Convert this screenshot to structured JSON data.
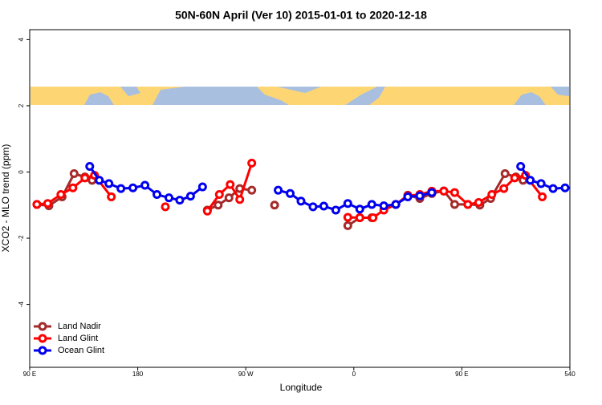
{
  "chart_data": {
    "type": "line",
    "title": "50N-60N April (Ver 10)   2015-01-01 to 2020-12-18",
    "x_label": "Longitude",
    "y_label": "XCO2 - MLO trend (ppm)",
    "xlim": [
      90,
      540
    ],
    "ylim": [
      -5.9,
      4.3
    ],
    "xticks": [
      {
        "value": 90,
        "label": "90 E"
      },
      180,
      {
        "value": 270,
        "label": "90 W"
      },
      {
        "value": 360,
        "label": "0"
      },
      {
        "value": 450,
        "label": "90 E"
      },
      540
    ],
    "yticks": [
      -4,
      -2,
      0,
      2,
      4
    ],
    "legend": "bottom-left",
    "series": [
      {
        "name": "Land Nadir",
        "color": "#a52a2a",
        "x": [
          96,
          106,
          117,
          127,
          136,
          142,
          null,
          238,
          247,
          256,
          265,
          275,
          null,
          294,
          null,
          355,
          365,
          375,
          null,
          395,
          405,
          415,
          425,
          435,
          444,
          455,
          465,
          474,
          486,
          495,
          501
        ],
        "values": [
          -0.98,
          -1.02,
          -0.75,
          -0.05,
          -0.15,
          -0.25,
          null,
          -1.15,
          -1.0,
          -0.78,
          -0.5,
          -0.55,
          null,
          -1.0,
          null,
          -1.62,
          -1.38,
          -1.38,
          null,
          -0.98,
          -0.7,
          -0.8,
          -0.65,
          -0.57,
          -0.98,
          -0.98,
          -1.0,
          -0.8,
          -0.05,
          -0.15,
          -0.25
        ]
      },
      {
        "name": "Land Glint",
        "color": "#ff0000",
        "x": [
          96,
          105,
          116,
          126,
          136,
          144,
          158,
          null,
          203,
          null,
          238,
          248,
          257,
          265,
          275,
          null,
          355,
          365,
          376,
          385,
          395,
          405,
          415,
          425,
          435,
          444,
          455,
          464,
          475,
          485,
          494,
          503,
          517
        ],
        "values": [
          -0.98,
          -0.95,
          -0.68,
          -0.48,
          -0.18,
          -0.1,
          -0.75,
          null,
          -1.05,
          null,
          -1.18,
          -0.68,
          -0.38,
          -0.83,
          0.27,
          null,
          -1.37,
          -1.38,
          -1.38,
          -1.15,
          -0.98,
          -0.72,
          -0.68,
          -0.58,
          -0.58,
          -0.62,
          -0.98,
          -0.92,
          -0.68,
          -0.5,
          -0.18,
          -0.1,
          -0.75
        ]
      },
      {
        "name": "Ocean Glint",
        "color": "#0000ee",
        "x": [
          140,
          148,
          156,
          166,
          176,
          186,
          196,
          206,
          215,
          224,
          234,
          null,
          297,
          307,
          316,
          326,
          335,
          345,
          355,
          365,
          375,
          385,
          395,
          405,
          415,
          425,
          null,
          499,
          507,
          516,
          526,
          536
        ],
        "values": [
          0.17,
          -0.25,
          -0.35,
          -0.5,
          -0.48,
          -0.4,
          -0.68,
          -0.78,
          -0.85,
          -0.73,
          -0.45,
          null,
          -0.55,
          -0.65,
          -0.88,
          -1.05,
          -1.03,
          -1.15,
          -0.95,
          -1.12,
          -0.98,
          -1.02,
          -0.98,
          -0.75,
          -0.72,
          -0.62,
          null,
          0.17,
          -0.25,
          -0.35,
          -0.5,
          -0.48
        ]
      }
    ]
  }
}
